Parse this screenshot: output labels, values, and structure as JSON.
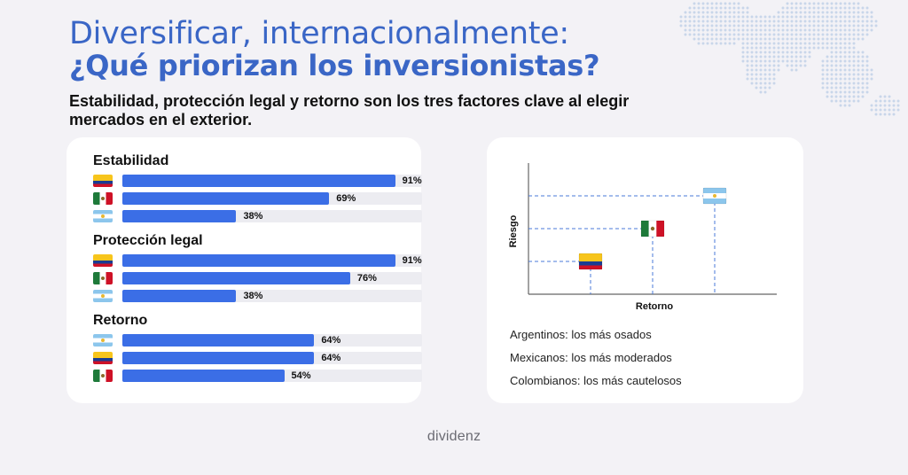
{
  "header": {
    "title_line1": "Diversificar, internacionalmente:",
    "title_line2": "¿Qué priorizan los inversionistas?",
    "subtitle": "Estabilidad, protección legal y retorno son los tres factores clave al elegir mercados en el exterior."
  },
  "colors": {
    "accent": "#3a66c6",
    "bar": "#3b6ee6",
    "track": "#ececf1",
    "dashed": "#4a78d8"
  },
  "chart_data": [
    {
      "type": "bar",
      "orientation": "horizontal",
      "unit": "%",
      "xlim": [
        0,
        100
      ],
      "groups": [
        {
          "title": "Estabilidad",
          "bars": [
            {
              "flag": "colombia-flag-icon",
              "value": 91,
              "label": "91%"
            },
            {
              "flag": "mexico-flag-icon",
              "value": 69,
              "label": "69%"
            },
            {
              "flag": "argentina-flag-icon",
              "value": 38,
              "label": "38%"
            }
          ]
        },
        {
          "title": "Protección legal",
          "bars": [
            {
              "flag": "colombia-flag-icon",
              "value": 91,
              "label": "91%"
            },
            {
              "flag": "mexico-flag-icon",
              "value": 76,
              "label": "76%"
            },
            {
              "flag": "argentina-flag-icon",
              "value": 38,
              "label": "38%"
            }
          ]
        },
        {
          "title": "Retorno",
          "bars": [
            {
              "flag": "argentina-flag-icon",
              "value": 64,
              "label": "64%"
            },
            {
              "flag": "colombia-flag-icon",
              "value": 64,
              "label": "64%"
            },
            {
              "flag": "mexico-flag-icon",
              "value": 54,
              "label": "54%"
            }
          ]
        }
      ]
    },
    {
      "type": "scatter",
      "xlabel": "Retorno",
      "ylabel": "Riesgo",
      "xlim": [
        0,
        4
      ],
      "ylim": [
        0,
        4
      ],
      "grid": false,
      "points": [
        {
          "flag": "colombia-flag-icon",
          "x": 1,
          "y": 1
        },
        {
          "flag": "mexico-flag-icon",
          "x": 2,
          "y": 2
        },
        {
          "flag": "argentina-flag-icon",
          "x": 3,
          "y": 3
        }
      ],
      "legend": [
        "Argentinos: los más osados",
        "Mexicanos: los más moderados",
        "Colombianos: los más cautelosos"
      ]
    }
  ],
  "footer": {
    "brand": "dividenz"
  }
}
